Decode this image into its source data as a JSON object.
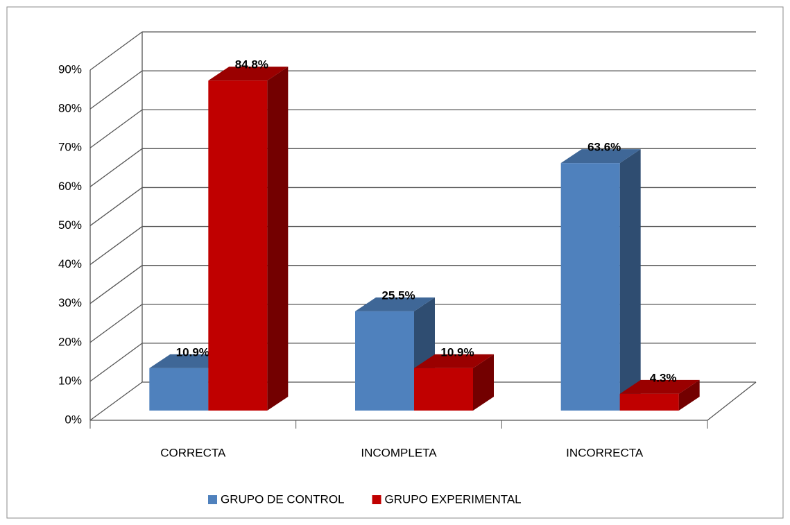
{
  "chart_data": {
    "type": "bar3d",
    "categories": [
      "CORRECTA",
      "INCOMPLETA",
      "INCORRECTA"
    ],
    "series": [
      {
        "name": "GRUPO DE CONTROL",
        "color": "#4f81bd",
        "values": [
          10.9,
          25.5,
          63.6
        ],
        "value_labels": [
          "10.9%",
          "25.5%",
          "63.6%"
        ]
      },
      {
        "name": "GRUPO EXPERIMENTAL",
        "color": "#c00000",
        "values": [
          84.8,
          10.9,
          4.3
        ],
        "value_labels": [
          "84.8%",
          "10.9%",
          "4.3%"
        ]
      }
    ],
    "ylim": [
      0,
      90
    ],
    "yticks": [
      {
        "value": 0,
        "label": "0%"
      },
      {
        "value": 10,
        "label": "10%"
      },
      {
        "value": 20,
        "label": "20%"
      },
      {
        "value": 30,
        "label": "30%"
      },
      {
        "value": 40,
        "label": "40%"
      },
      {
        "value": 50,
        "label": "50%"
      },
      {
        "value": 60,
        "label": "60%"
      },
      {
        "value": 70,
        "label": "70%"
      },
      {
        "value": 80,
        "label": "80%"
      },
      {
        "value": 90,
        "label": "90%"
      }
    ],
    "grid": true,
    "legend": "bottom"
  }
}
